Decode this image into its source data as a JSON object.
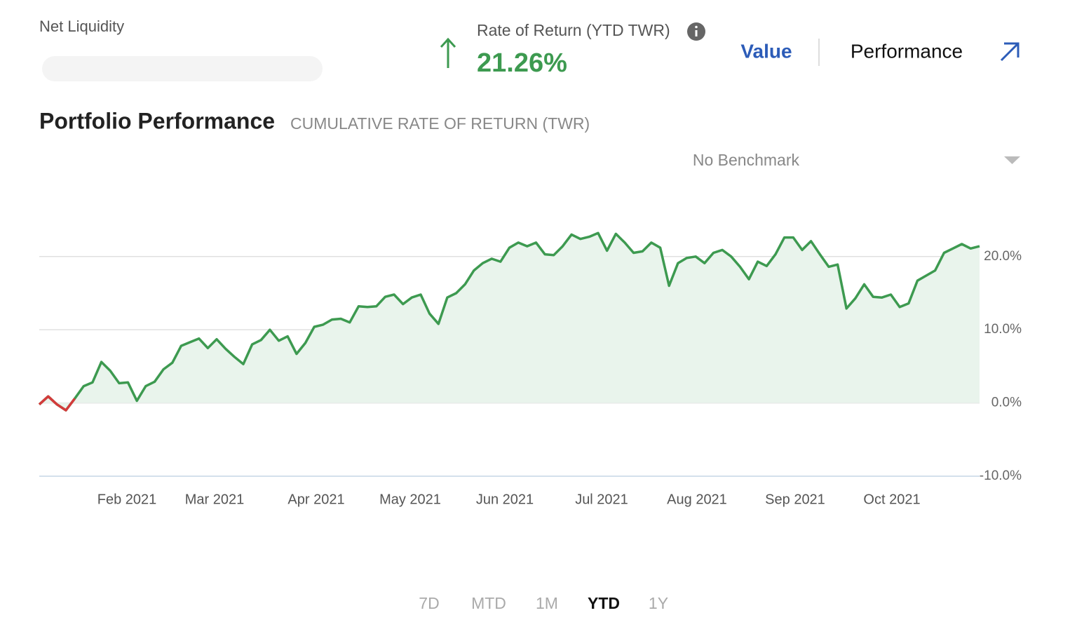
{
  "header": {
    "net_liquidity_label": "Net Liquidity",
    "return_label": "Rate of Return (YTD TWR)",
    "return_value": "21.26%",
    "tabs": [
      "Value",
      "Performance"
    ]
  },
  "chart_data": {
    "type": "line",
    "title": "Portfolio Performance",
    "subtitle": "CUMULATIVE RATE OF RETURN (TWR)",
    "benchmark": "No Benchmark",
    "color": "#3d9a50",
    "negative_color": "#d33b3b",
    "area_color": "#e9f4ec",
    "values": [
      -0.2,
      0.9,
      -0.2,
      -1.0,
      0.6,
      2.3,
      2.8,
      5.6,
      4.4,
      2.7,
      2.8,
      0.3,
      2.3,
      2.9,
      4.6,
      5.5,
      7.8,
      8.3,
      8.8,
      7.5,
      8.7,
      7.4,
      6.3,
      5.3,
      8.0,
      8.6,
      10.0,
      8.5,
      9.1,
      6.7,
      8.2,
      10.4,
      10.7,
      11.4,
      11.5,
      11.0,
      13.2,
      13.1,
      13.2,
      14.5,
      14.8,
      13.5,
      14.4,
      14.8,
      12.2,
      10.8,
      14.4,
      15.0,
      16.2,
      18.1,
      19.1,
      19.7,
      19.3,
      21.2,
      21.9,
      21.4,
      21.9,
      20.3,
      20.2,
      21.4,
      23.0,
      22.4,
      22.7,
      23.2,
      20.8,
      23.1,
      21.9,
      20.5,
      20.7,
      21.9,
      21.2,
      16.0,
      19.1,
      19.8,
      20.0,
      19.1,
      20.5,
      20.9,
      20.0,
      18.6,
      16.9,
      19.3,
      18.7,
      20.3,
      22.6,
      22.6,
      20.9,
      22.1,
      20.3,
      18.6,
      18.9,
      12.9,
      14.3,
      16.2,
      14.5,
      14.4,
      14.8,
      13.1,
      13.6,
      16.7,
      17.4,
      18.1,
      20.5,
      21.1,
      21.7,
      21.1,
      21.4
    ],
    "xtick_labels": [
      "Feb 2021",
      "Mar 2021",
      "Apr 2021",
      "May 2021",
      "Jun 2021",
      "Jul 2021",
      "Aug 2021",
      "Sep 2021",
      "Oct 2021"
    ],
    "ylim": [
      -10,
      28.5
    ],
    "yticks": [
      {
        "value": -10,
        "label": "-10.0%"
      },
      {
        "value": 0,
        "label": "0.0%"
      },
      {
        "value": 10,
        "label": "10.0%"
      },
      {
        "value": 20,
        "label": "20.0%"
      }
    ],
    "grid": true
  },
  "ranges": {
    "options": [
      "7D",
      "MTD",
      "1M",
      "YTD",
      "1Y"
    ],
    "active": "YTD"
  }
}
